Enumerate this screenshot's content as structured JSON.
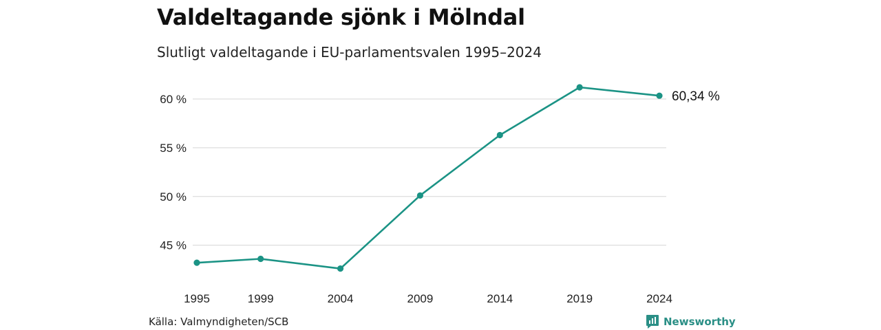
{
  "header": {
    "title": "Valdeltagande sjönk i Mölndal",
    "subtitle": "Slutligt valdeltagande i EU-parlamentsvalen 1995–2024"
  },
  "footer": {
    "source": "Källa: Valmyndigheten/SCB",
    "brand": "Newsworthy",
    "brand_icon": "bar-chart-logo-icon"
  },
  "colors": {
    "line": "#1b9385",
    "grid": "#dddddd",
    "brand": "#2a8f86"
  },
  "chart_data": {
    "type": "line",
    "title": "Valdeltagande sjönk i Mölndal",
    "subtitle": "Slutligt valdeltagande i EU-parlamentsvalen 1995–2024",
    "xlabel": "",
    "ylabel": "",
    "categories": [
      "1995",
      "1999",
      "2004",
      "2009",
      "2014",
      "2019",
      "2024"
    ],
    "series": [
      {
        "values": [
          43.2,
          43.6,
          42.6,
          50.1,
          56.3,
          61.2,
          60.34
        ]
      }
    ],
    "y_ticks": [
      45,
      50,
      55,
      60
    ],
    "y_tick_labels": [
      "45 %",
      "50 %",
      "55 %",
      "60 %"
    ],
    "ylim": [
      41.8,
      62.4
    ],
    "end_label": "60,34 %",
    "grid": "horizontal",
    "legend": "none"
  }
}
